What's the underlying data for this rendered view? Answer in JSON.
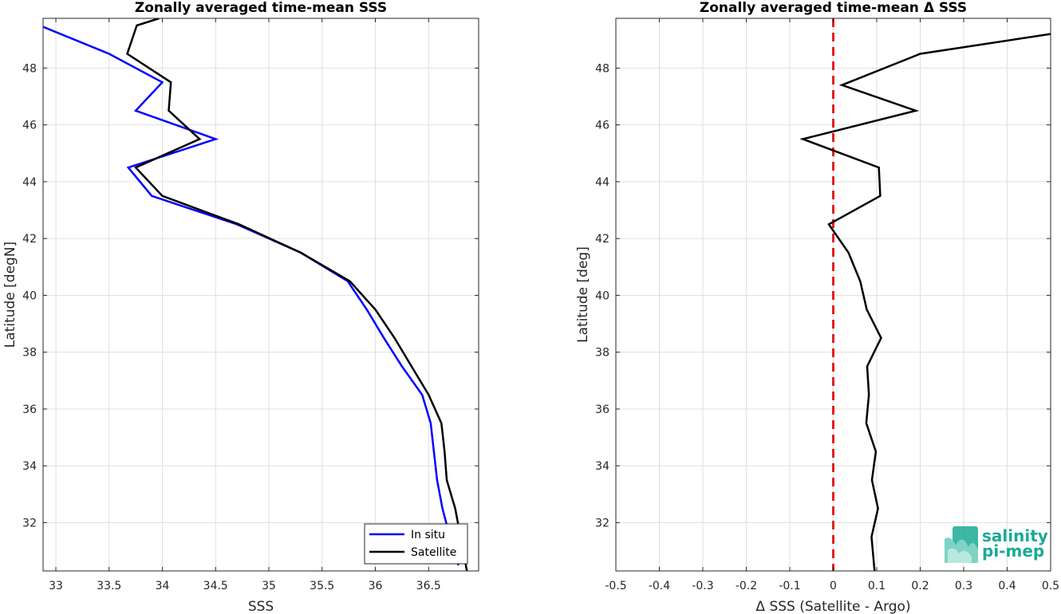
{
  "chart_data": [
    {
      "type": "line",
      "title": "Zonally averaged time-mean SSS",
      "xlabel": "SSS",
      "ylabel": "Latitude [degN]",
      "xlim": [
        32.88,
        36.97
      ],
      "ylim": [
        30.3,
        49.75
      ],
      "xticks": [
        33,
        33.5,
        34,
        34.5,
        35,
        35.5,
        36,
        36.5
      ],
      "xtick_labels": [
        "33",
        "33.5",
        "34",
        "34.5",
        "35",
        "35.5",
        "36",
        "36.5"
      ],
      "yticks": [
        32,
        34,
        36,
        38,
        40,
        42,
        44,
        46,
        48
      ],
      "ytick_labels": [
        "32",
        "34",
        "36",
        "38",
        "40",
        "42",
        "44",
        "46",
        "48"
      ],
      "grid": true,
      "legend_position": "bottom-right",
      "series": [
        {
          "name": "In situ",
          "color": "#0000ff",
          "points": [
            [
              32.88,
              49.45
            ],
            [
              33.5,
              48.5
            ],
            [
              34.0,
              47.5
            ],
            [
              33.75,
              46.5
            ],
            [
              34.5,
              45.5
            ],
            [
              33.68,
              44.5
            ],
            [
              33.9,
              43.5
            ],
            [
              34.7,
              42.5
            ],
            [
              35.3,
              41.5
            ],
            [
              35.74,
              40.5
            ],
            [
              35.92,
              39.5
            ],
            [
              36.08,
              38.5
            ],
            [
              36.25,
              37.5
            ],
            [
              36.44,
              36.5
            ],
            [
              36.52,
              35.5
            ],
            [
              36.55,
              34.5
            ],
            [
              36.58,
              33.5
            ],
            [
              36.63,
              32.5
            ],
            [
              36.7,
              31.5
            ],
            [
              36.78,
              30.5
            ]
          ]
        },
        {
          "name": "Satellite",
          "color": "#000000",
          "points": [
            [
              33.97,
              49.75
            ],
            [
              33.76,
              49.5
            ],
            [
              33.67,
              48.5
            ],
            [
              34.08,
              47.5
            ],
            [
              34.06,
              46.5
            ],
            [
              34.35,
              45.5
            ],
            [
              33.75,
              44.5
            ],
            [
              34.0,
              43.5
            ],
            [
              34.72,
              42.5
            ],
            [
              35.3,
              41.5
            ],
            [
              35.76,
              40.5
            ],
            [
              36.0,
              39.5
            ],
            [
              36.18,
              38.5
            ],
            [
              36.34,
              37.5
            ],
            [
              36.5,
              36.5
            ],
            [
              36.62,
              35.5
            ],
            [
              36.65,
              34.5
            ],
            [
              36.67,
              33.5
            ],
            [
              36.75,
              32.5
            ],
            [
              36.8,
              31.5
            ],
            [
              36.86,
              30.3
            ]
          ]
        }
      ]
    },
    {
      "type": "line",
      "title": "Zonally averaged time-mean Δ SSS",
      "xlabel": "Δ SSS (Satellite - Argo)",
      "ylabel": "Latitude [deg]",
      "xlim": [
        -0.5,
        0.5
      ],
      "ylim": [
        30.3,
        49.75
      ],
      "xticks": [
        -0.5,
        -0.4,
        -0.3,
        -0.2,
        -0.1,
        0,
        0.1,
        0.2,
        0.3,
        0.4,
        0.5
      ],
      "xtick_labels": [
        "-0.5",
        "-0.4",
        "-0.3",
        "-0.2",
        "-0.1",
        "0",
        "0.1",
        "0.2",
        "0.3",
        "0.4",
        "0.5"
      ],
      "yticks": [
        32,
        34,
        36,
        38,
        40,
        42,
        44,
        46,
        48
      ],
      "ytick_labels": [
        "32",
        "34",
        "36",
        "38",
        "40",
        "42",
        "44",
        "46",
        "48"
      ],
      "grid": true,
      "reference_line": {
        "x": 0,
        "color": "#e02020",
        "style": "dashed"
      },
      "series": [
        {
          "color": "#000000",
          "points": [
            [
              0.5,
              49.2
            ],
            [
              0.2,
              48.5
            ],
            [
              0.02,
              47.4
            ],
            [
              0.19,
              46.5
            ],
            [
              -0.07,
              45.5
            ],
            [
              0.105,
              44.5
            ],
            [
              0.108,
              43.5
            ],
            [
              -0.01,
              42.5
            ],
            [
              0.035,
              41.5
            ],
            [
              0.062,
              40.5
            ],
            [
              0.077,
              39.5
            ],
            [
              0.11,
              38.5
            ],
            [
              0.078,
              37.5
            ],
            [
              0.082,
              36.5
            ],
            [
              0.076,
              35.5
            ],
            [
              0.098,
              34.5
            ],
            [
              0.089,
              33.5
            ],
            [
              0.103,
              32.5
            ],
            [
              0.088,
              31.5
            ],
            [
              0.095,
              30.3
            ]
          ]
        }
      ]
    }
  ],
  "logo": {
    "line1": "salinity",
    "line2": "pi-mep",
    "color": "#1aaa94"
  }
}
